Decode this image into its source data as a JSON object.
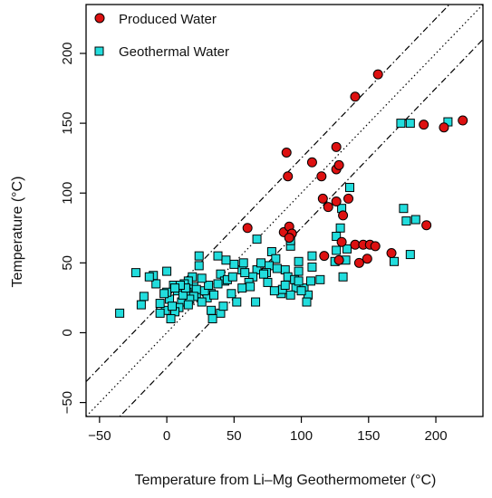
{
  "chart_data": {
    "type": "scatter",
    "title": "",
    "xlabel": "Temperature from Li–Mg Geothermometer (°C)",
    "ylabel": "Temperature (°C)",
    "xlim": [
      -60,
      235
    ],
    "ylim": [
      -60,
      235
    ],
    "x_ticks": [
      -50,
      0,
      50,
      100,
      150,
      200
    ],
    "x_tick_labels": [
      "−50",
      "0",
      "50",
      "100",
      "150",
      "200"
    ],
    "y_ticks": [
      -50,
      0,
      50,
      100,
      150,
      200
    ],
    "y_tick_labels": [
      "−50",
      "0",
      "50",
      "100",
      "150",
      "200"
    ],
    "grid": false,
    "legend_position": "top-left",
    "reference_lines": [
      {
        "style": "dotted",
        "offset": 0
      },
      {
        "style": "dashdot",
        "offset": 25
      },
      {
        "style": "dashdot",
        "offset": -25
      }
    ],
    "series": [
      {
        "name": "Produced Water",
        "marker": "circle",
        "color": "#dd1111",
        "points": [
          [
            157,
            185
          ],
          [
            140,
            169
          ],
          [
            220,
            152
          ],
          [
            206,
            147
          ],
          [
            191,
            149
          ],
          [
            89,
            129
          ],
          [
            126,
            133
          ],
          [
            90,
            112
          ],
          [
            108,
            122
          ],
          [
            126,
            117
          ],
          [
            128,
            120
          ],
          [
            115,
            112
          ],
          [
            116,
            96
          ],
          [
            120,
            90
          ],
          [
            126,
            94
          ],
          [
            135,
            96
          ],
          [
            131,
            84
          ],
          [
            60,
            75
          ],
          [
            87,
            72
          ],
          [
            91,
            76
          ],
          [
            93,
            71
          ],
          [
            91,
            68
          ],
          [
            130,
            65
          ],
          [
            117,
            55
          ],
          [
            193,
            77
          ],
          [
            167,
            57
          ],
          [
            140,
            63
          ],
          [
            146,
            63
          ],
          [
            151,
            63
          ],
          [
            155,
            62
          ],
          [
            149,
            53
          ],
          [
            143,
            50
          ],
          [
            128,
            52
          ]
        ]
      },
      {
        "name": "Geothermal Water",
        "marker": "square",
        "color": "#22dddd",
        "points": [
          [
            174,
            150
          ],
          [
            181,
            150
          ],
          [
            209,
            151
          ],
          [
            176,
            89
          ],
          [
            185,
            81
          ],
          [
            178,
            80
          ],
          [
            181,
            56
          ],
          [
            169,
            51
          ],
          [
            136,
            104
          ],
          [
            130,
            89
          ],
          [
            129,
            75
          ],
          [
            126,
            69
          ],
          [
            134,
            60
          ],
          [
            126,
            59
          ],
          [
            133,
            52
          ],
          [
            125,
            51
          ],
          [
            131,
            40
          ],
          [
            108,
            55
          ],
          [
            108,
            47
          ],
          [
            114,
            38
          ],
          [
            92,
            62
          ],
          [
            92,
            66
          ],
          [
            67,
            67
          ],
          [
            78,
            58
          ],
          [
            98,
            51
          ],
          [
            98,
            44
          ],
          [
            96,
            32
          ],
          [
            88,
            45
          ],
          [
            90,
            40
          ],
          [
            95,
            38
          ],
          [
            102,
            32
          ],
          [
            105,
            27
          ],
          [
            107,
            37
          ],
          [
            81,
            53
          ],
          [
            76,
            48
          ],
          [
            74,
            43
          ],
          [
            67,
            45
          ],
          [
            64,
            40
          ],
          [
            61,
            36
          ],
          [
            56,
            32
          ],
          [
            56,
            45
          ],
          [
            57,
            50
          ],
          [
            50,
            49
          ],
          [
            44,
            52
          ],
          [
            40,
            42
          ],
          [
            43,
            37
          ],
          [
            38,
            35
          ],
          [
            33,
            28
          ],
          [
            30,
            25
          ],
          [
            26,
            22
          ],
          [
            22,
            28
          ],
          [
            20,
            33
          ],
          [
            19,
            40
          ],
          [
            16,
            37
          ],
          [
            13,
            35
          ],
          [
            15,
            29
          ],
          [
            11,
            22
          ],
          [
            9,
            18
          ],
          [
            6,
            15
          ],
          [
            3,
            10
          ],
          [
            8,
            30
          ],
          [
            5,
            34
          ],
          [
            2,
            24
          ],
          [
            0,
            29
          ],
          [
            -1,
            16
          ],
          [
            -5,
            14
          ],
          [
            -8,
            35
          ],
          [
            -10,
            41
          ],
          [
            -13,
            40
          ],
          [
            -17,
            26
          ],
          [
            -19,
            20
          ],
          [
            -23,
            43
          ],
          [
            -35,
            14
          ],
          [
            -5,
            21
          ],
          [
            0,
            44
          ],
          [
            24,
            55
          ],
          [
            24,
            48
          ],
          [
            38,
            55
          ],
          [
            45,
            38
          ],
          [
            48,
            28
          ],
          [
            52,
            22
          ],
          [
            40,
            14
          ],
          [
            34,
            10
          ],
          [
            42,
            19
          ],
          [
            72,
            42
          ],
          [
            85,
            28
          ],
          [
            86,
            31
          ],
          [
            66,
            22
          ],
          [
            58,
            43
          ],
          [
            28,
            30
          ],
          [
            22,
            31
          ],
          [
            20,
            26
          ],
          [
            17,
            24
          ],
          [
            35,
            27
          ],
          [
            31,
            34
          ],
          [
            26,
            39
          ],
          [
            12,
            27
          ],
          [
            14,
            32
          ],
          [
            10,
            34
          ],
          [
            49,
            40
          ],
          [
            62,
            33
          ],
          [
            75,
            36
          ],
          [
            80,
            30
          ],
          [
            100,
            30
          ],
          [
            104,
            22
          ],
          [
            92,
            27
          ],
          [
            70,
            50
          ],
          [
            82,
            46
          ],
          [
            98,
            37
          ],
          [
            88,
            34
          ],
          [
            -2,
            28
          ],
          [
            4,
            19
          ],
          [
            16,
            20
          ],
          [
            6,
            32
          ],
          [
            33,
            16
          ]
        ]
      }
    ]
  }
}
